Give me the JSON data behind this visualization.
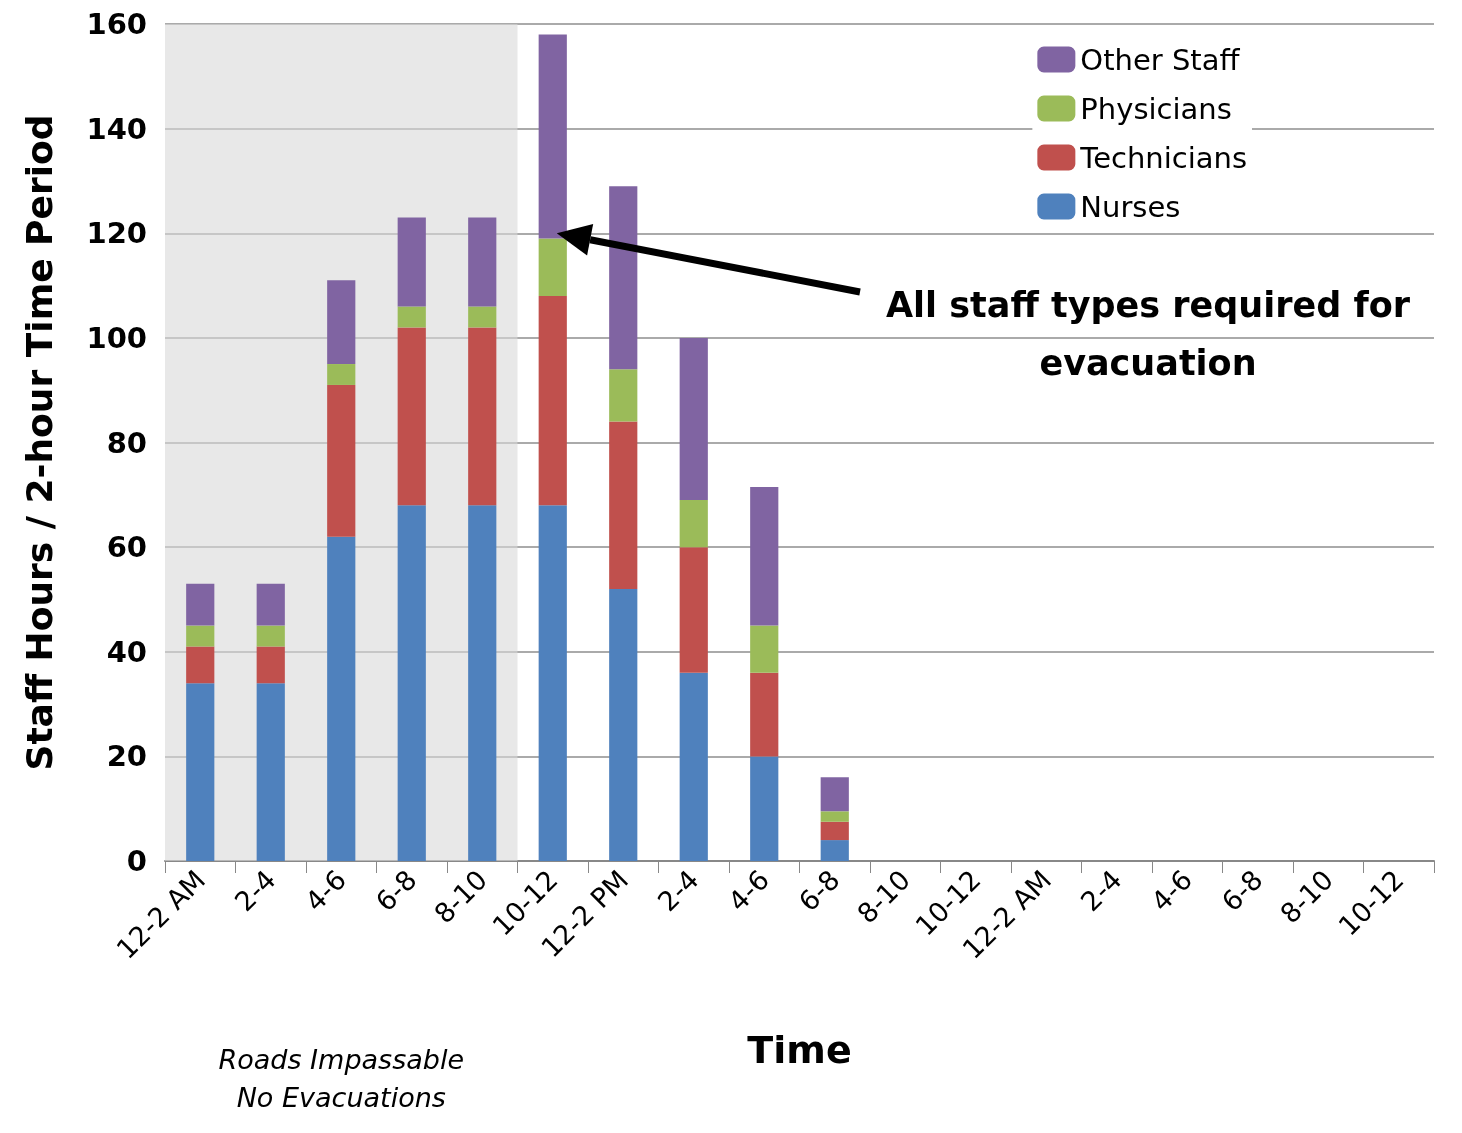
{
  "chart_data": {
    "type": "bar",
    "stacked": true,
    "xlabel": "Time",
    "ylabel": "Staff Hours / 2-hour Time Period",
    "categories": [
      "12-2 AM",
      "2-4",
      "4-6",
      "6-8",
      "8-10",
      "10-12",
      "12-2 PM",
      "2-4",
      "4-6",
      "6-8",
      "8-10",
      "10-12",
      "12-2 AM",
      "2-4",
      "4-6",
      "6-8",
      "8-10",
      "10-12"
    ],
    "series": [
      {
        "name": "Nurses",
        "color": "#4f81bd",
        "values": [
          34,
          34,
          62,
          68,
          68,
          68,
          52,
          36,
          20,
          4,
          null,
          null,
          null,
          null,
          null,
          null,
          null,
          null
        ]
      },
      {
        "name": "Technicians",
        "color": "#c0504d",
        "values": [
          7,
          7,
          29,
          34,
          34,
          40,
          32,
          24,
          16,
          3.5,
          null,
          null,
          null,
          null,
          null,
          null,
          null,
          null
        ]
      },
      {
        "name": "Physicians",
        "color": "#9bbb59",
        "values": [
          4,
          4,
          4,
          4,
          4,
          11,
          10,
          9,
          9,
          2,
          null,
          null,
          null,
          null,
          null,
          null,
          null,
          null
        ]
      },
      {
        "name": "Other Staff",
        "color": "#8064a2",
        "values": [
          8,
          8,
          16,
          17,
          17,
          39,
          35,
          31,
          26.5,
          6.5,
          null,
          null,
          null,
          null,
          null,
          null,
          null,
          null
        ]
      }
    ],
    "ylim": [
      0,
      160
    ],
    "yticks": [
      0,
      20,
      40,
      60,
      80,
      100,
      120,
      140,
      160
    ],
    "grid": "y",
    "legend": "top right",
    "bands": [
      {
        "axis": "x",
        "from": "12-2 AM",
        "to": "8-10",
        "color": "#d9d9d9"
      }
    ],
    "annotations": [
      "All staff types required for\nevacuation",
      "Roads Impassable\nNo Evacuations"
    ]
  }
}
